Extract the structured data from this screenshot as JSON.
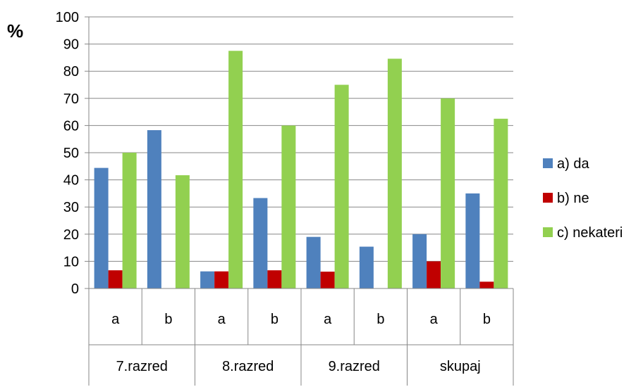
{
  "chart_data": {
    "type": "bar",
    "ylabel": "%",
    "ylim": [
      0,
      100
    ],
    "yticks": [
      0,
      10,
      20,
      30,
      40,
      50,
      60,
      70,
      80,
      90,
      100
    ],
    "grid": true,
    "legend_position": "right",
    "groups": [
      {
        "label": "7.razred",
        "subcategories": [
          "a",
          "b"
        ]
      },
      {
        "label": "8.razred",
        "subcategories": [
          "a",
          "b"
        ]
      },
      {
        "label": "9.razred",
        "subcategories": [
          "a",
          "b"
        ]
      },
      {
        "label": "skupaj",
        "subcategories": [
          "a",
          "b"
        ]
      }
    ],
    "series": [
      {
        "name": "a) da",
        "color": "#4F81BD",
        "values": [
          44.4,
          58.3,
          6.3,
          33.3,
          19.0,
          15.4,
          20.0,
          35.0
        ]
      },
      {
        "name": "b) ne",
        "color": "#C00000",
        "values": [
          6.7,
          0,
          6.3,
          6.7,
          6.2,
          0,
          10.0,
          2.5
        ]
      },
      {
        "name": "c) nekateri",
        "color": "#92D050",
        "values": [
          50.0,
          41.7,
          87.5,
          60.0,
          75.0,
          84.6,
          70.0,
          62.5
        ]
      }
    ]
  }
}
